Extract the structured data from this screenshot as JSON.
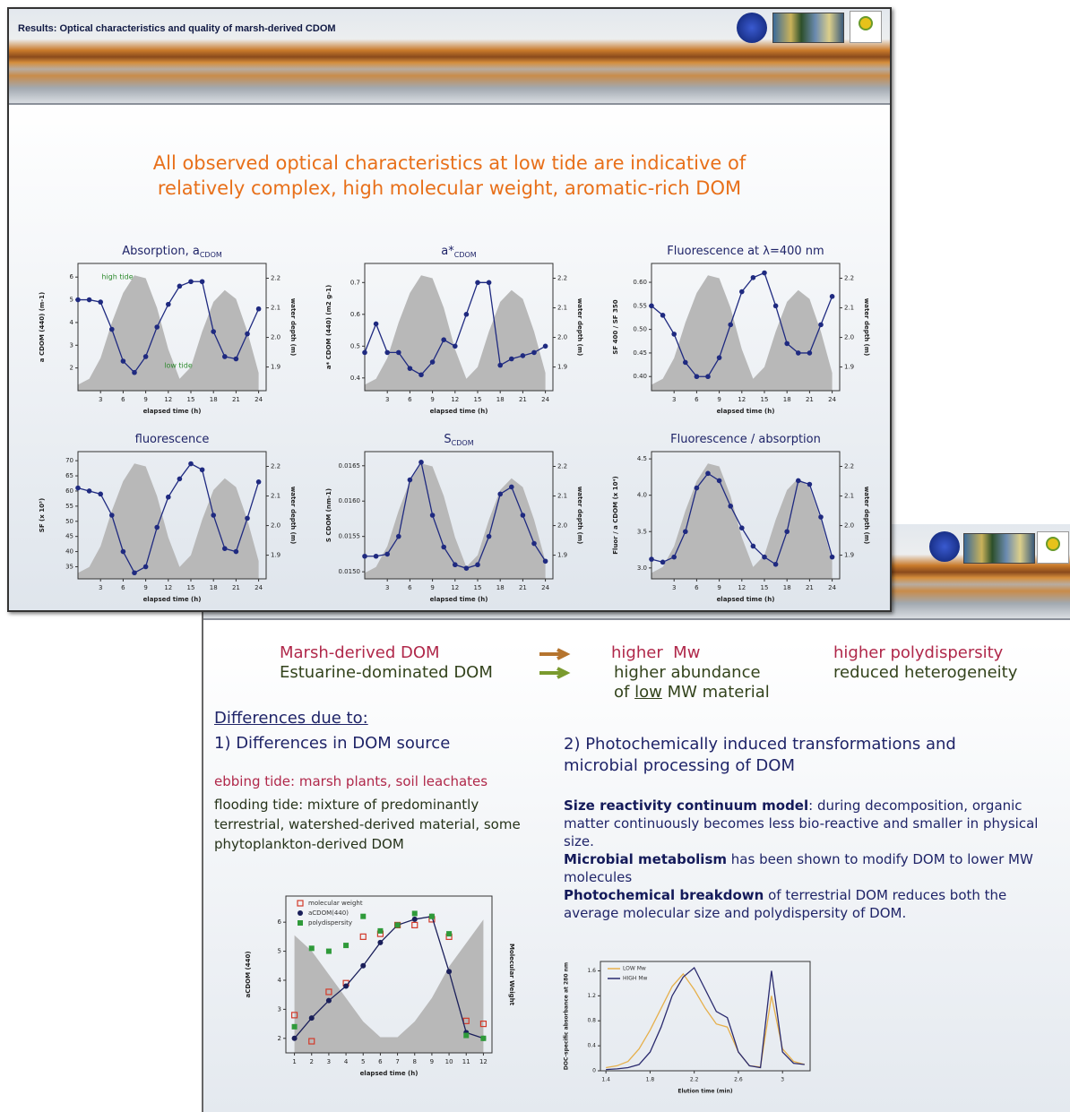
{
  "slide1": {
    "header_title": "Results: Optical characteristics and quality of marsh-derived CDOM",
    "headline": [
      "All observed optical characteristics at low tide are indicative of",
      "relatively complex, high molecular weight, aromatic-rich DOM"
    ]
  },
  "slide2": {
    "row1": [
      "Marsh-derived DOM",
      "higher  Mw",
      "higher polydispersity"
    ],
    "row2": [
      "Estuarine-dominated DOM",
      "higher abundance",
      "reduced heterogeneity"
    ],
    "row3": [
      "of",
      "low",
      "MW material"
    ],
    "differences_heading": "Differences due to:",
    "point1": "1) Differences in DOM source",
    "ebbing": "ebbing tide: marsh plants, soil leachates",
    "flooding": "flooding tide: mixture of predominantly terrestrial, watershed-derived material, some phytoplankton-derived DOM",
    "point2": "2) Photochemically induced transformations and microbial processing of DOM",
    "paragraphs": [
      {
        "lead": "Size reactivity continuum model",
        "text": ": during decomposition, organic matter continuously becomes less bio-reactive and smaller in physical size."
      },
      {
        "lead": "Microbial metabolism",
        "text": "has been shown to modify DOM to lower MW molecules"
      },
      {
        "lead": "Photochemical breakdown",
        "text": "of terrestrial DOM reduces both the average molecular size and polydispersity of DOM."
      }
    ]
  },
  "chart_data": [
    {
      "type": "line",
      "title": "Absorption, a",
      "title_sub": "CDOM",
      "x": [
        0,
        1.5,
        3,
        4.5,
        6,
        7.5,
        9,
        10.5,
        12,
        13.5,
        15,
        16.5,
        18,
        19.5,
        21,
        22.5,
        24
      ],
      "values": [
        5.0,
        5.0,
        4.9,
        3.7,
        2.3,
        1.8,
        2.5,
        3.8,
        4.8,
        5.6,
        5.8,
        5.8,
        3.6,
        2.5,
        2.4,
        3.5,
        4.6
      ],
      "color": "#1f2a80",
      "marker": "circle",
      "area": {
        "values": [
          1.84,
          1.86,
          1.93,
          2.05,
          2.15,
          2.21,
          2.2,
          2.1,
          1.96,
          1.86,
          1.9,
          2.02,
          2.12,
          2.16,
          2.13,
          2.02,
          1.88
        ],
        "color": "#b8b8b8",
        "axis": "y2"
      },
      "annotations": [
        "high tide",
        "low tide"
      ],
      "xlim": [
        0,
        25
      ],
      "xticks": [
        3,
        6,
        9,
        12,
        15,
        18,
        21,
        24
      ],
      "ylim": [
        1,
        6.6
      ],
      "yticks": [
        2,
        3,
        4,
        5,
        6
      ],
      "y2lim": [
        1.82,
        2.25
      ],
      "y2ticks": [
        1.9,
        {
          "value": 2,
          "label": "2.0"
        },
        2.1,
        2.2
      ],
      "xlabel": "elapsed time (h)",
      "ylabel": "a CDOM (440) (m-1)",
      "y2label": "water depth (m)"
    },
    {
      "type": "line",
      "title": "a*",
      "title_sub": "CDOM",
      "x": [
        0,
        1.5,
        3,
        4.5,
        6,
        7.5,
        9,
        10.5,
        12,
        13.5,
        15,
        16.5,
        18,
        19.5,
        21,
        22.5,
        24
      ],
      "values": [
        0.48,
        0.57,
        0.48,
        0.48,
        0.43,
        0.41,
        0.45,
        0.52,
        0.5,
        0.6,
        0.7,
        0.7,
        0.44,
        0.46,
        0.47,
        0.48,
        0.5
      ],
      "color": "#1f2a80",
      "marker": "circle",
      "area": {
        "values": [
          1.84,
          1.86,
          1.93,
          2.05,
          2.15,
          2.21,
          2.2,
          2.1,
          1.96,
          1.86,
          1.9,
          2.02,
          2.12,
          2.16,
          2.13,
          2.02,
          1.88
        ],
        "color": "#b8b8b8",
        "axis": "y2"
      },
      "xlim": [
        0,
        25
      ],
      "xticks": [
        3,
        6,
        9,
        12,
        15,
        18,
        21,
        24
      ],
      "ylim": [
        0.36,
        0.76
      ],
      "yticks": [
        0.4,
        0.5,
        0.6,
        0.7
      ],
      "y2lim": [
        1.82,
        2.25
      ],
      "y2ticks": [
        1.9,
        {
          "value": 2,
          "label": "2.0"
        },
        2.1,
        2.2
      ],
      "xlabel": "elapsed time (h)",
      "ylabel": "a* CDOM (440) (m2 g-1)",
      "y2label": "water depth (m)"
    },
    {
      "type": "line",
      "title": "Fluorescence at λ=400 nm",
      "x": [
        0,
        1.5,
        3,
        4.5,
        6,
        7.5,
        9,
        10.5,
        12,
        13.5,
        15,
        16.5,
        18,
        19.5,
        21,
        22.5,
        24
      ],
      "values": [
        0.55,
        0.53,
        0.49,
        0.43,
        0.4,
        0.4,
        0.44,
        0.51,
        0.58,
        0.61,
        0.62,
        0.55,
        0.47,
        0.45,
        0.45,
        0.51,
        0.57
      ],
      "color": "#1f2a80",
      "marker": "circle",
      "area": {
        "values": [
          1.84,
          1.86,
          1.93,
          2.05,
          2.15,
          2.21,
          2.2,
          2.1,
          1.96,
          1.86,
          1.9,
          2.02,
          2.12,
          2.16,
          2.13,
          2.02,
          1.88
        ],
        "color": "#b8b8b8",
        "axis": "y2"
      },
      "xlim": [
        0,
        25
      ],
      "xticks": [
        3,
        6,
        9,
        12,
        15,
        18,
        21,
        24
      ],
      "ylim": [
        0.37,
        0.64
      ],
      "yticks": [
        {
          "value": 0.4,
          "label": "0.40"
        },
        0.45,
        {
          "value": 0.5,
          "label": "0.50"
        },
        0.55,
        {
          "value": 0.6,
          "label": "0.60"
        }
      ],
      "y2lim": [
        1.82,
        2.25
      ],
      "y2ticks": [
        1.9,
        {
          "value": 2,
          "label": "2.0"
        },
        2.1,
        2.2
      ],
      "xlabel": "elapsed time (h)",
      "ylabel": "SF 400 / SF 350",
      "y2label": "water depth (m)"
    },
    {
      "type": "line",
      "title": "fluorescence",
      "x": [
        0,
        1.5,
        3,
        4.5,
        6,
        7.5,
        9,
        10.5,
        12,
        13.5,
        15,
        16.5,
        18,
        19.5,
        21,
        22.5,
        24
      ],
      "values": [
        61,
        60,
        59,
        52,
        40,
        33,
        35,
        48,
        58,
        64,
        69,
        67,
        52,
        41,
        40,
        51,
        63
      ],
      "color": "#1f2a80",
      "marker": "circle",
      "area": {
        "values": [
          1.84,
          1.86,
          1.93,
          2.05,
          2.15,
          2.21,
          2.2,
          2.1,
          1.96,
          1.86,
          1.9,
          2.02,
          2.12,
          2.16,
          2.13,
          2.02,
          1.88
        ],
        "color": "#b8b8b8",
        "axis": "y2"
      },
      "xlim": [
        0,
        25
      ],
      "xticks": [
        3,
        6,
        9,
        12,
        15,
        18,
        21,
        24
      ],
      "ylim": [
        31,
        73
      ],
      "yticks": [
        35,
        40,
        45,
        50,
        55,
        60,
        65,
        70
      ],
      "y2lim": [
        1.82,
        2.25
      ],
      "y2ticks": [
        1.9,
        {
          "value": 2,
          "label": "2.0"
        },
        2.1,
        2.2
      ],
      "xlabel": "elapsed time (h)",
      "ylabel": "SF (x 10³)",
      "y2label": "water depth (m)"
    },
    {
      "type": "line",
      "title": "S",
      "title_sub": "CDOM",
      "x": [
        0,
        1.5,
        3,
        4.5,
        6,
        7.5,
        9,
        10.5,
        12,
        13.5,
        15,
        16.5,
        18,
        19.5,
        21,
        22.5,
        24
      ],
      "values": [
        0.01522,
        0.01522,
        0.01525,
        0.0155,
        0.0163,
        0.01655,
        0.0158,
        0.01535,
        0.0151,
        0.01505,
        0.0151,
        0.0155,
        0.0161,
        0.0162,
        0.0158,
        0.0154,
        0.01515
      ],
      "color": "#1f2a80",
      "marker": "circle",
      "area": {
        "values": [
          1.84,
          1.86,
          1.93,
          2.05,
          2.15,
          2.21,
          2.2,
          2.1,
          1.96,
          1.86,
          1.9,
          2.02,
          2.12,
          2.16,
          2.13,
          2.02,
          1.88
        ],
        "color": "#b8b8b8",
        "axis": "y2"
      },
      "xlim": [
        0,
        25
      ],
      "xticks": [
        3,
        6,
        9,
        12,
        15,
        18,
        21,
        24
      ],
      "ylim": [
        0.0149,
        0.0167
      ],
      "yticks": [
        {
          "value": 0.015,
          "label": "0.0150"
        },
        0.0155,
        {
          "value": 0.016,
          "label": "0.0160"
        },
        0.0165
      ],
      "y2lim": [
        1.82,
        2.25
      ],
      "y2ticks": [
        1.9,
        {
          "value": 2,
          "label": "2.0"
        },
        2.1,
        2.2
      ],
      "xlabel": "elapsed time (h)",
      "ylabel": "S CDOM (nm-1)",
      "y2label": "water depth (m)"
    },
    {
      "type": "line",
      "title": "Fluorescence / absorption",
      "x": [
        0,
        1.5,
        3,
        4.5,
        6,
        7.5,
        9,
        10.5,
        12,
        13.5,
        15,
        16.5,
        18,
        19.5,
        21,
        22.5,
        24
      ],
      "values": [
        3.12,
        3.08,
        3.15,
        3.5,
        4.1,
        4.3,
        4.2,
        3.85,
        3.55,
        3.3,
        3.15,
        3.05,
        3.5,
        4.2,
        4.15,
        3.7,
        3.15
      ],
      "color": "#1f2a80",
      "marker": "circle",
      "area": {
        "values": [
          1.84,
          1.86,
          1.93,
          2.05,
          2.15,
          2.21,
          2.2,
          2.1,
          1.96,
          1.86,
          1.9,
          2.02,
          2.12,
          2.16,
          2.13,
          2.02,
          1.88
        ],
        "color": "#b8b8b8",
        "axis": "y2"
      },
      "xlim": [
        0,
        25
      ],
      "xticks": [
        3,
        6,
        9,
        12,
        15,
        18,
        21,
        24
      ],
      "ylim": [
        2.85,
        4.6
      ],
      "yticks": [
        {
          "value": 3,
          "label": "3.0"
        },
        3.5,
        {
          "value": 4,
          "label": "4.0"
        },
        4.5
      ],
      "y2lim": [
        1.82,
        2.25
      ],
      "y2ticks": [
        1.9,
        {
          "value": 2,
          "label": "2.0"
        },
        2.1,
        2.2
      ],
      "xlabel": "elapsed time (h)",
      "ylabel": "Fluor / a CDOM (x 10⁴)",
      "y2label": "water depth (m)"
    },
    {
      "type": "scatter",
      "x": [
        1,
        2,
        3,
        4,
        5,
        6,
        7,
        8,
        9,
        10,
        11,
        12
      ],
      "series": [
        {
          "name": "molecular weight",
          "color": "#d23a2a",
          "marker": "square-open",
          "line": false,
          "values": [
            2.8,
            1.9,
            3.6,
            3.9,
            5.5,
            5.6,
            5.9,
            5.9,
            6.1,
            5.5,
            2.6,
            2.5
          ]
        },
        {
          "name": "aCDOM(440)",
          "color": "#1a1f5a",
          "marker": "circle",
          "line": true,
          "values": [
            2.0,
            2.7,
            3.3,
            3.8,
            4.5,
            5.3,
            5.9,
            6.1,
            6.2,
            4.3,
            2.2,
            2.0
          ]
        },
        {
          "name": "polydispersity",
          "color": "#2f9a3a",
          "marker": "square",
          "line": false,
          "values": [
            2.4,
            5.1,
            5.0,
            5.2,
            6.2,
            5.7,
            5.9,
            6.3,
            6.2,
            5.6,
            2.1,
            2.0
          ]
        }
      ],
      "area": {
        "values": [
          0.75,
          0.65,
          0.5,
          0.35,
          0.2,
          0.1,
          0.1,
          0.2,
          0.35,
          0.55,
          0.7,
          0.85
        ],
        "color": "#b8b8b8",
        "axis": "y2"
      },
      "legend": true,
      "xlim": [
        0.5,
        12.5
      ],
      "xticks": [
        1,
        2,
        3,
        4,
        5,
        6,
        7,
        8,
        9,
        10,
        11,
        12
      ],
      "ylim": [
        1.5,
        6.9
      ],
      "yticks": [
        2,
        3,
        4,
        5,
        6
      ],
      "y2lim": [
        0,
        1
      ],
      "xlabel": "elapsed time (h)",
      "ylabel": "aCDOM (440)",
      "y2label": "Molecular Weight"
    },
    {
      "type": "line",
      "x": [
        1.4,
        1.5,
        1.6,
        1.7,
        1.8,
        1.9,
        2.0,
        2.1,
        2.2,
        2.3,
        2.4,
        2.5,
        2.6,
        2.7,
        2.8,
        2.9,
        3.0,
        3.1,
        3.2
      ],
      "series": [
        {
          "name": "LOW Mw",
          "color": "#e6b04c",
          "values": [
            0.05,
            0.08,
            0.15,
            0.35,
            0.65,
            1.0,
            1.35,
            1.55,
            1.3,
            1.0,
            0.75,
            0.7,
            0.3,
            0.08,
            0.06,
            1.2,
            0.35,
            0.15,
            0.1
          ]
        },
        {
          "name": "HIGH Mw",
          "color": "#2a2a6e",
          "values": [
            0.02,
            0.03,
            0.05,
            0.1,
            0.3,
            0.7,
            1.2,
            1.5,
            1.65,
            1.3,
            0.95,
            0.85,
            0.3,
            0.08,
            0.05,
            1.6,
            0.3,
            0.12,
            0.1
          ]
        }
      ],
      "legend": true,
      "xlim": [
        1.35,
        3.25
      ],
      "xticks": [
        1.4,
        1.8,
        2.2,
        2.6,
        3
      ],
      "ylim": [
        0,
        1.75
      ],
      "yticks": [
        0,
        0.4,
        0.8,
        1.2,
        1.6
      ],
      "xlabel": "Elution time (min)",
      "ylabel": "DOC-specific absorbance at 280 nm"
    }
  ]
}
